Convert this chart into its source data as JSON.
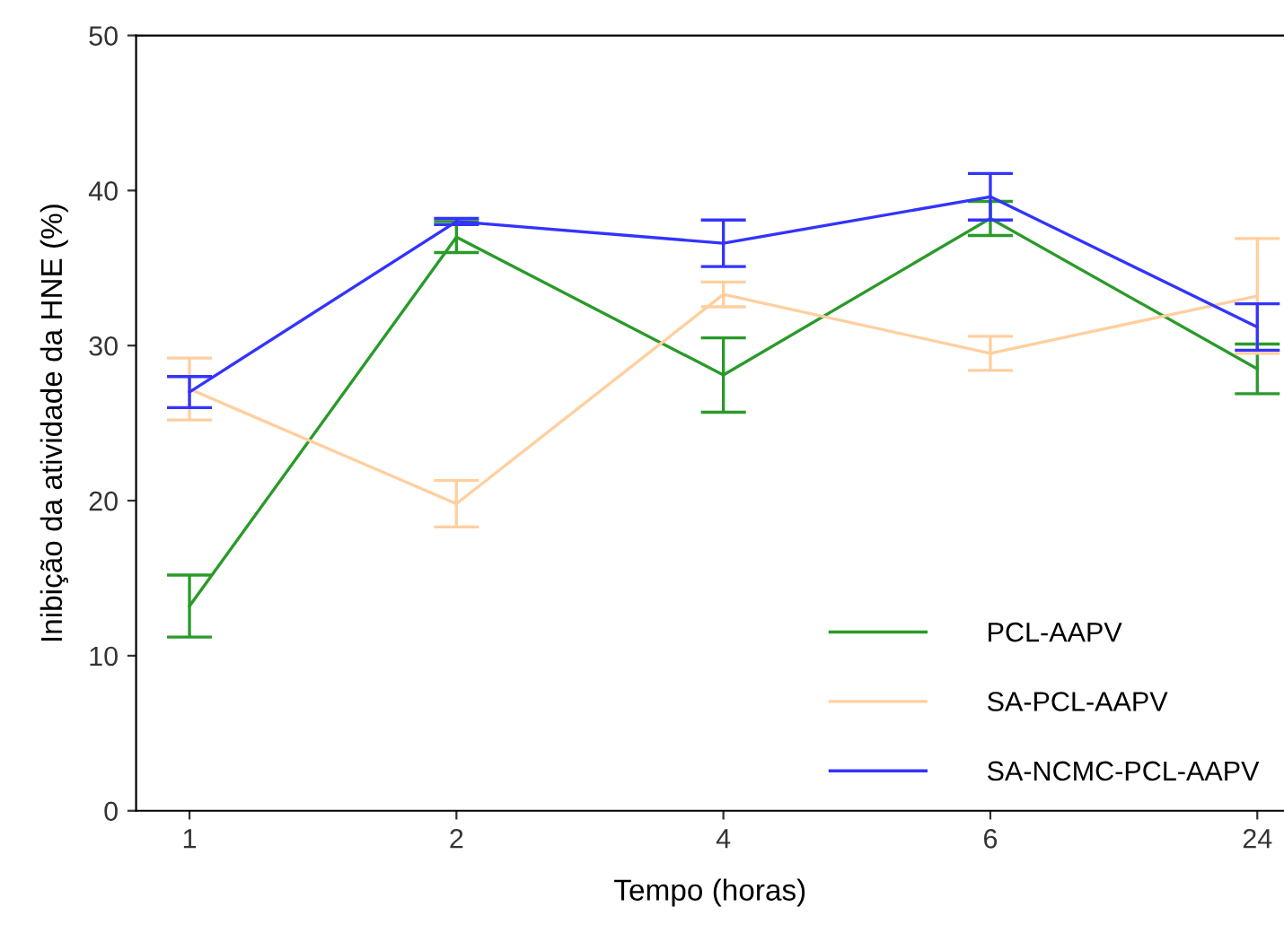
{
  "chart_data": {
    "type": "line",
    "xlabel": "Tempo (horas)",
    "ylabel": "Inibição da atividade da HNE (%)",
    "categories": [
      "1",
      "2",
      "4",
      "6",
      "24"
    ],
    "ylim": [
      0,
      50
    ],
    "yticks": [
      0,
      10,
      20,
      30,
      40,
      50
    ],
    "grid": false,
    "legend": "bottom right",
    "marker": "none",
    "line_style": "solid",
    "series": [
      {
        "name": "PCL-AAPV",
        "color": "#2a9a2a",
        "values": [
          13.2,
          37.0,
          28.1,
          38.2,
          28.5
        ],
        "errors": [
          2.0,
          1.0,
          2.4,
          1.1,
          1.6
        ]
      },
      {
        "name": "SA-PCL-AAPV",
        "color": "#ffcf9f",
        "values": [
          27.2,
          19.8,
          33.3,
          29.5,
          33.2
        ],
        "errors": [
          2.0,
          1.5,
          0.8,
          1.1,
          3.7
        ]
      },
      {
        "name": "SA-NCMC-PCL-AAPV",
        "color": "#3333ff",
        "values": [
          27.0,
          38.0,
          36.6,
          39.6,
          31.2
        ],
        "errors": [
          1.0,
          0.2,
          1.5,
          1.5,
          1.5
        ]
      }
    ]
  }
}
